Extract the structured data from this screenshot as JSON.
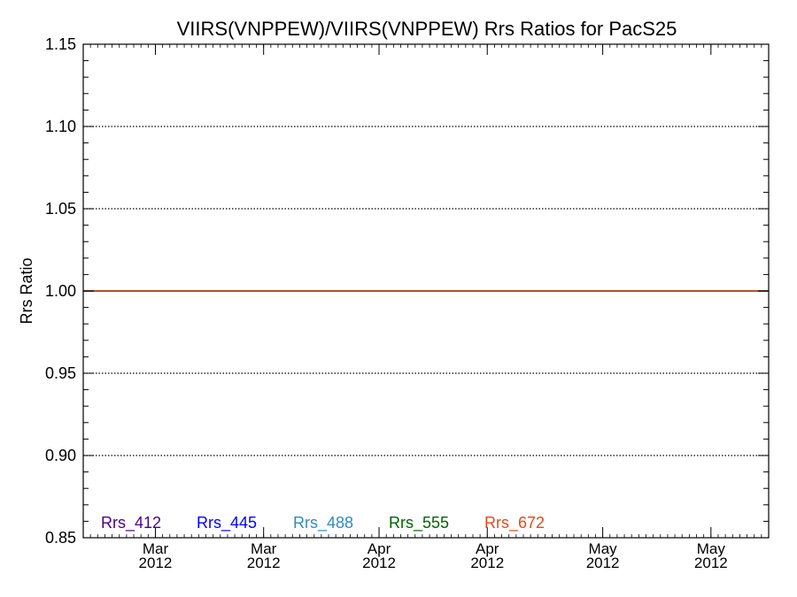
{
  "chart_data": {
    "type": "line",
    "title": "VIIRS(VNPPEW)/VIIRS(VNPPEW)  Rrs Ratios for PacS25",
    "xlabel": "",
    "ylabel": "Rrs Ratio",
    "ylim": [
      0.85,
      1.15
    ],
    "yticks": [
      "0.85",
      "0.90",
      "0.95",
      "1.00",
      "1.05",
      "1.10",
      "1.15"
    ],
    "yticks_values": [
      0.85,
      0.9,
      0.95,
      1.0,
      1.05,
      1.1,
      1.15
    ],
    "xlim": [
      "2012-02-20",
      "2012-05-25"
    ],
    "xticks": [
      {
        "month": "Mar",
        "year": "2012",
        "date": "2012-03-01"
      },
      {
        "month": "Mar",
        "year": "2012",
        "date": "2012-03-16"
      },
      {
        "month": "Apr",
        "year": "2012",
        "date": "2012-04-01"
      },
      {
        "month": "Apr",
        "year": "2012",
        "date": "2012-04-16"
      },
      {
        "month": "May",
        "year": "2012",
        "date": "2012-05-02"
      },
      {
        "month": "May",
        "year": "2012",
        "date": "2012-05-17"
      }
    ],
    "grid": "horizontal dotted",
    "reference_line": 1.0,
    "legend_position": "bottom",
    "series": [
      {
        "name": "Rrs_412",
        "color": "#4b0082",
        "values": [
          1.0,
          1.0
        ]
      },
      {
        "name": "Rrs_445",
        "color": "#0000ff",
        "values": [
          1.0,
          1.0
        ]
      },
      {
        "name": "Rrs_488",
        "color": "#2e8bc0",
        "values": [
          1.0,
          1.0
        ]
      },
      {
        "name": "Rrs_555",
        "color": "#006400",
        "values": [
          1.0,
          1.0
        ]
      },
      {
        "name": "Rrs_672",
        "color": "#e34a1a",
        "values": [
          1.0,
          1.0
        ]
      }
    ],
    "x": [
      "2012-02-20",
      "2012-05-25"
    ]
  }
}
